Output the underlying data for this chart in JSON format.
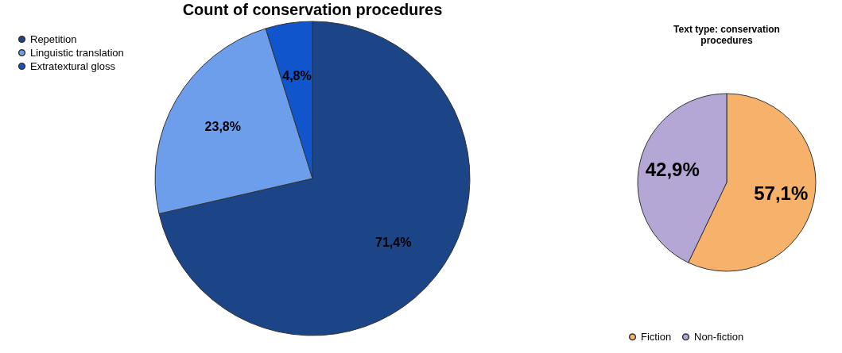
{
  "chart_data": [
    {
      "type": "pie",
      "title": "Count of conservation procedures",
      "categories": [
        "Repetition",
        "Linguistic translation",
        "Extratextural gloss"
      ],
      "values": [
        71.4,
        23.8,
        4.8
      ],
      "value_labels": [
        "71,4%",
        "23,8%",
        "4,8%"
      ],
      "colors": [
        "#1c4587",
        "#6d9eeb",
        "#1155cc"
      ],
      "legend": "top left"
    },
    {
      "type": "pie",
      "title": "Text type: conservation procedures",
      "categories": [
        "Fiction",
        "Non-fiction"
      ],
      "values": [
        57.1,
        42.9
      ],
      "value_labels": [
        "57,1%",
        "42,9%"
      ],
      "colors": [
        "#f6b26b",
        "#b4a7d6"
      ],
      "legend": "bottom"
    }
  ]
}
